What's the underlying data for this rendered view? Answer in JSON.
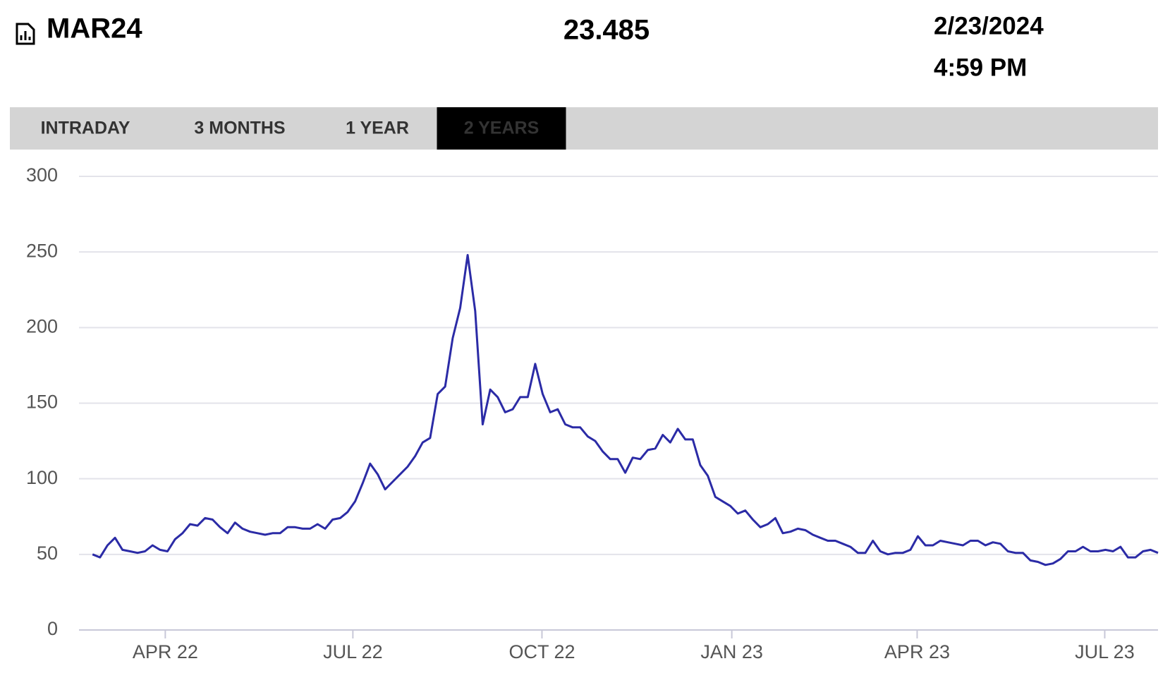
{
  "header": {
    "symbol": "MAR24",
    "price": "23.485",
    "date": "2/23/2024",
    "time": "4:59 PM"
  },
  "tabs": {
    "items": [
      "INTRADAY",
      "3 MONTHS",
      "1 YEAR",
      "2 YEARS"
    ],
    "active": 3
  },
  "chart_data": {
    "type": "line",
    "color": "#2b2ba6",
    "grid": true,
    "values": [
      50,
      48,
      56,
      61,
      53,
      52,
      51,
      52,
      56,
      53,
      52,
      60,
      64,
      70,
      69,
      74,
      73,
      68,
      64,
      71,
      67,
      65,
      64,
      63,
      64,
      64,
      68,
      68,
      67,
      67,
      70,
      67,
      73,
      74,
      78,
      85,
      97,
      110,
      103,
      93,
      98,
      103,
      108,
      115,
      124,
      127,
      156,
      161,
      193,
      213,
      248,
      211,
      136,
      159,
      154,
      144,
      146,
      154,
      154,
      176,
      156,
      144,
      146,
      136,
      134,
      134,
      128,
      125,
      118,
      113,
      113,
      104,
      114,
      113,
      119,
      120,
      129,
      124,
      133,
      126,
      126,
      109,
      102,
      88,
      85,
      82,
      77,
      79,
      73,
      68,
      70,
      74,
      64,
      65,
      67,
      66,
      63,
      61,
      59,
      59,
      57,
      55,
      51,
      51,
      59,
      52,
      50,
      51,
      51,
      53,
      62,
      56,
      56,
      59,
      58,
      57,
      56,
      59,
      59,
      56,
      58,
      57,
      52,
      51,
      51,
      46,
      45,
      43,
      44,
      47,
      52,
      52,
      55,
      52,
      52,
      53,
      52,
      55,
      48,
      48,
      52,
      53,
      51
    ],
    "xlim": [
      -1.8,
      142
    ],
    "xticks": [
      {
        "value": 9.7,
        "label": "APR 22"
      },
      {
        "value": 34.7,
        "label": "JUL 22"
      },
      {
        "value": 59.9,
        "label": "OCT 22"
      },
      {
        "value": 85.2,
        "label": "JAN 23"
      },
      {
        "value": 109.9,
        "label": "APR 23"
      },
      {
        "value": 134.9,
        "label": "JUL 23"
      }
    ],
    "ylim": [
      0,
      300
    ],
    "yticks": [
      0,
      50,
      100,
      150,
      200,
      250,
      300
    ]
  }
}
